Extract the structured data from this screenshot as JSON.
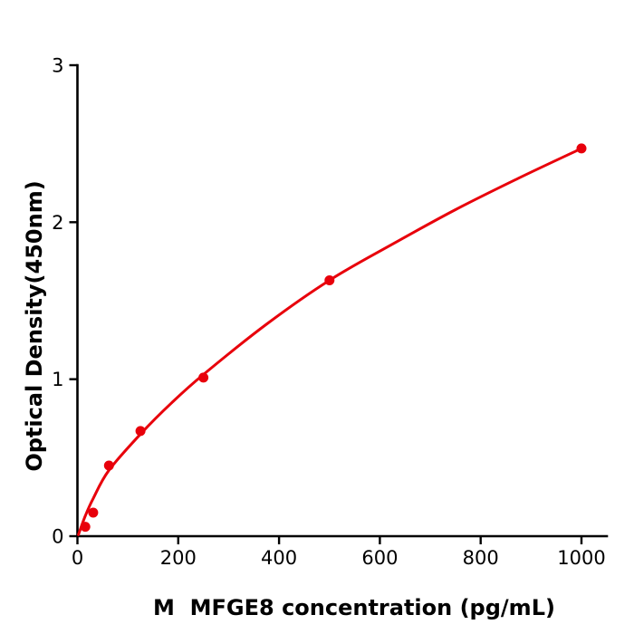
{
  "figure": {
    "background_color": "#ffffff",
    "kind": "ELISA standard curve plot"
  },
  "chart_data": {
    "type": "scatter",
    "title": "",
    "xlabel": "M  MFGE8 concentration (pg/mL)",
    "ylabel": "Optical Density(450nm)",
    "x_ticks": [
      0,
      200,
      400,
      600,
      800,
      1000
    ],
    "y_ticks": [
      0,
      1,
      2,
      3
    ],
    "xlim": [
      0,
      1050
    ],
    "ylim": [
      0,
      3
    ],
    "grid": false,
    "legend": null,
    "axis_color": "#000000",
    "point_color": "#e8000b",
    "curve_color": "#e8000b",
    "series": [
      {
        "name": "standard-points",
        "x": [
          15.6,
          31.2,
          62.5,
          125,
          250,
          500,
          1000
        ],
        "y": [
          0.06,
          0.15,
          0.45,
          0.67,
          1.01,
          1.63,
          2.47
        ]
      }
    ],
    "fit_curve": {
      "x": [
        2,
        15.6,
        31.2,
        62.5,
        125,
        187,
        250,
        375,
        500,
        625,
        750,
        875,
        1000
      ],
      "y": [
        0.01,
        0.13,
        0.24,
        0.42,
        0.65,
        0.85,
        1.03,
        1.35,
        1.63,
        1.86,
        2.08,
        2.28,
        2.47
      ]
    }
  }
}
